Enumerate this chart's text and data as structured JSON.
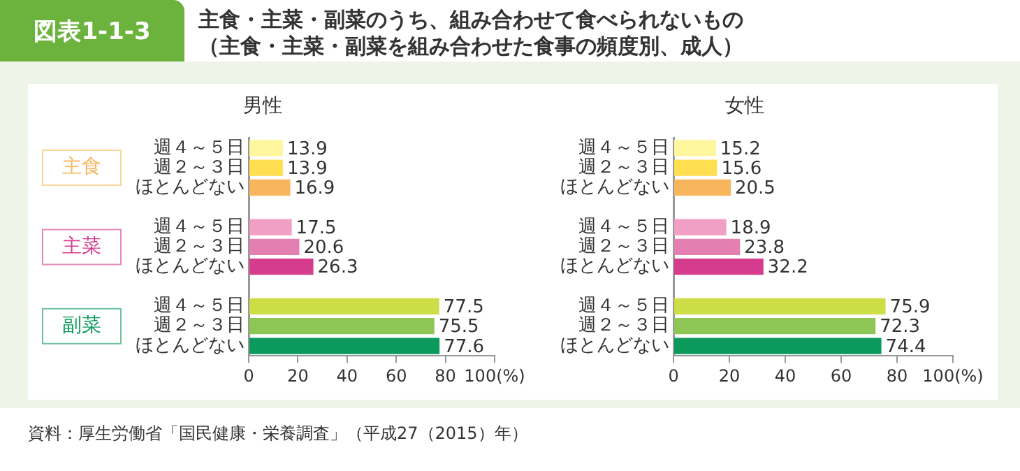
{
  "chart_data": [
    {
      "type": "other",
      "title": "主食・主菜・副菜のうち、組み合わせて食べられないもの",
      "subtitle": "（主食・主菜・副菜を組み合わせた食事の頻度別、成人）",
      "annotations": [
        "図表1-1-3",
        "資料：厚生労働省「国民健康・栄養調査」（平成27（2015）年）"
      ]
    },
    {
      "type": "bar",
      "orientation": "horizontal",
      "title": "男性",
      "categories": [
        "週４～５日",
        "週２～３日",
        "ほとんどない",
        null,
        "週４～５日",
        "週２～３日",
        "ほとんどない",
        null,
        "週４～５日",
        "週２～３日",
        "ほとんどない"
      ],
      "values": [
        13.9,
        13.9,
        16.9,
        null,
        17.5,
        20.6,
        26.3,
        null,
        77.5,
        75.5,
        77.6
      ],
      "colors": [
        "#fff69e",
        "#ffdf4f",
        "#f7b55c",
        null,
        "#f29fc5",
        "#e47fb2",
        "#d63c8e",
        null,
        "#cddd46",
        "#8dc654",
        "#0b9a5c"
      ],
      "xlim": [
        0,
        100
      ],
      "xticks": [
        0,
        20,
        40,
        60,
        80,
        {
          "value": 100,
          "label": "100(%)"
        }
      ],
      "data_labels": true,
      "grid": false,
      "legend": false,
      "annotations": [
        "主食",
        "主菜",
        "副菜"
      ]
    },
    {
      "type": "bar",
      "orientation": "horizontal",
      "title": "女性",
      "categories": [
        "週４～５日",
        "週２～３日",
        "ほとんどない",
        null,
        "週４～５日",
        "週２～３日",
        "ほとんどない",
        null,
        "週４～５日",
        "週２～３日",
        "ほとんどない"
      ],
      "values": [
        15.2,
        15.6,
        20.5,
        null,
        18.9,
        23.8,
        32.2,
        null,
        75.9,
        72.3,
        74.4
      ],
      "colors": [
        "#fff69e",
        "#ffdf4f",
        "#f7b55c",
        null,
        "#f29fc5",
        "#e47fb2",
        "#d63c8e",
        null,
        "#cddd46",
        "#8dc654",
        "#0b9a5c"
      ],
      "xlim": [
        0,
        100
      ],
      "xticks": [
        0,
        20,
        40,
        60,
        80,
        {
          "value": 100,
          "label": "100(%)"
        }
      ],
      "data_labels": true,
      "grid": false,
      "legend": false
    }
  ]
}
